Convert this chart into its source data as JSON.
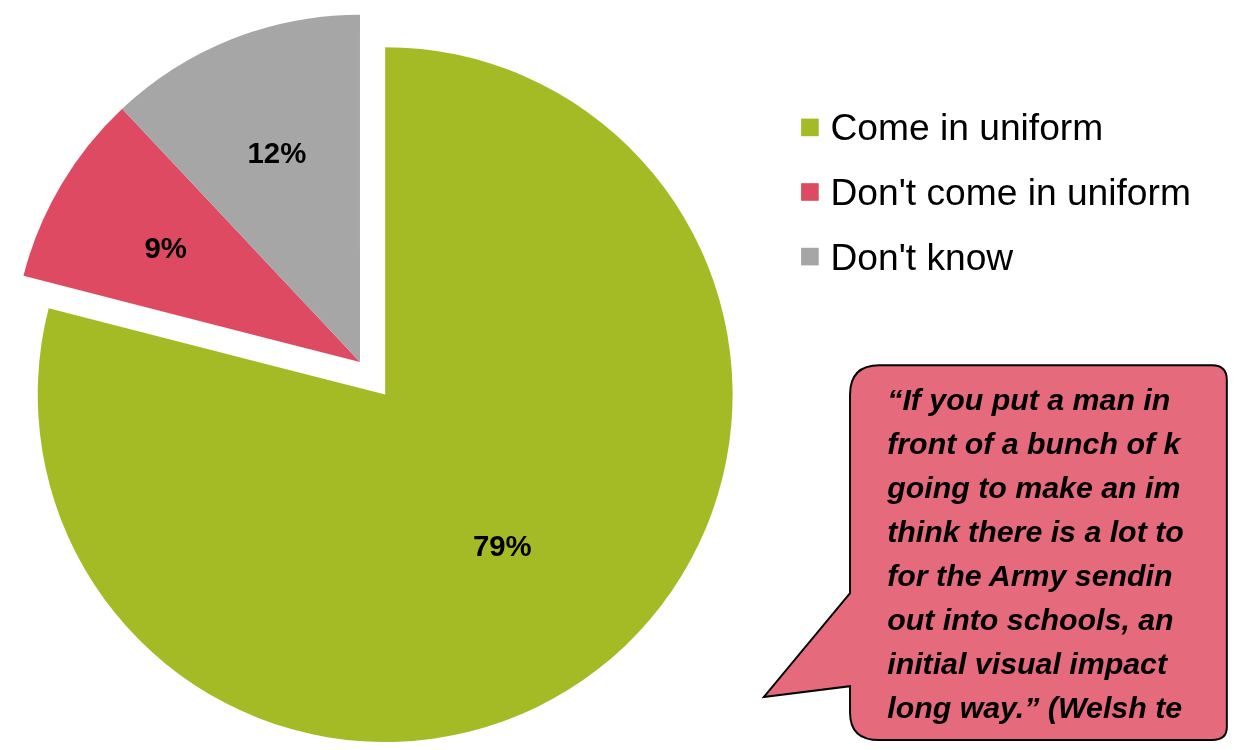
{
  "chart_data": {
    "type": "pie",
    "categories": [
      "Come in uniform",
      "Don't come in uniform",
      "Don't know"
    ],
    "values": [
      79,
      9,
      12
    ],
    "colors": [
      "#a5bb26",
      "#de4a62",
      "#a6a6a6"
    ],
    "value_labels": [
      "79%",
      "9%",
      "12%"
    ],
    "legend": "right",
    "annotations": [
      "“If you put a man in",
      "front of a bunch of k",
      "going to make an im",
      "think there is a lot to",
      "for the Army sendin",
      "out into schools, an",
      "initial visual impact",
      "long way.”  (Welsh te"
    ]
  }
}
